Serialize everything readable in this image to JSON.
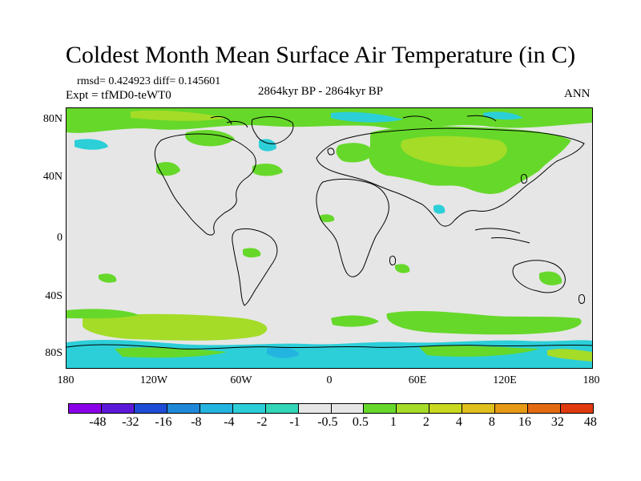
{
  "title": "Coldest Month Mean Surface Air Temperature (in C)",
  "stats": "rmsd= 0.424923  diff= 0.145601",
  "experiment": "Expt = tfMD0-teWT0",
  "period": "2864kyr BP - 2864kyr BP",
  "season": "ANN",
  "y_axis_labels": [
    "80N",
    "40N",
    "0",
    "40S",
    "80S"
  ],
  "x_axis_labels": [
    "180",
    "120W",
    "60W",
    "0",
    "60E",
    "120E",
    "180"
  ],
  "colorbar": {
    "colors": [
      "#8a00e8",
      "#5c18d8",
      "#1f4cd6",
      "#1f88d8",
      "#23b4e0",
      "#2ccfd8",
      "#32d6b8",
      "#e6e6e6",
      "#e6e6e6",
      "#66d82a",
      "#a4dc28",
      "#c8d91e",
      "#e0c01c",
      "#e69a16",
      "#e46a12",
      "#e03a10"
    ],
    "labels": [
      "-48",
      "-32",
      "-16",
      "-8",
      "-4",
      "-2",
      "-1",
      "-0.5",
      "0.5",
      "1",
      "2",
      "4",
      "8",
      "16",
      "32",
      "48"
    ]
  },
  "anomaly_colors": {
    "background": "#e6e6e6",
    "light_cyan": "#2ccfd8",
    "cyan": "#23b4e0",
    "green": "#66d82a",
    "yellow_green": "#a4dc28"
  }
}
